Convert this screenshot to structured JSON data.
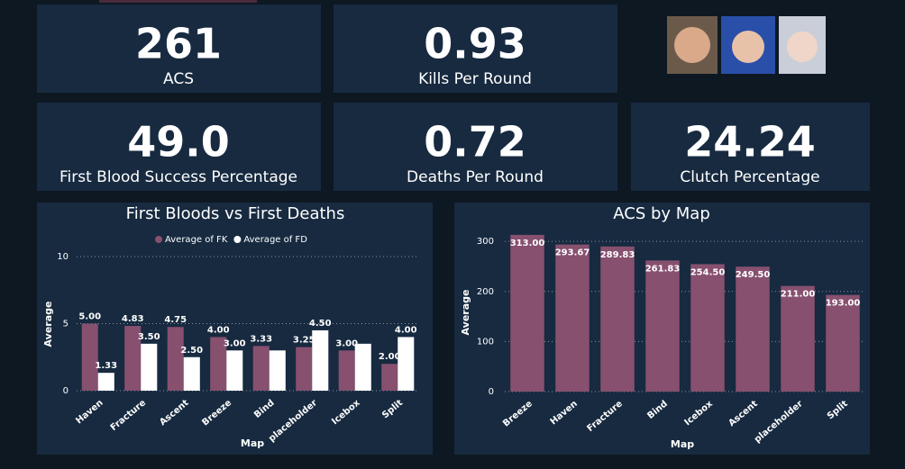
{
  "cards": [
    {
      "value": "261",
      "label": "ACS"
    },
    {
      "value": "0.93",
      "label": "Kills Per Round"
    },
    {
      "value": "49.0",
      "label": "First Blood Success Percentage"
    },
    {
      "value": "0.72",
      "label": "Deaths Per Round"
    },
    {
      "value": "24.24",
      "label": "Clutch Percentage"
    }
  ],
  "chart_data": [
    {
      "type": "bar",
      "title": "First Bloods vs First Deaths",
      "xlabel": "Map",
      "ylabel": "Average",
      "categories": [
        "Haven",
        "Fracture",
        "Ascent",
        "Breeze",
        "Bind",
        "placeholder",
        "Icebox",
        "Split"
      ],
      "series": [
        {
          "name": "Average of FK",
          "color": "#87506f",
          "values": [
            5,
            4.83,
            4.75,
            4,
            3.33,
            3.25,
            3,
            2
          ],
          "value_labels": [
            "5.00",
            "4.83",
            "4.75",
            "4.00",
            "3.33",
            "3.25",
            "3.00",
            "2.00"
          ]
        },
        {
          "name": "Average of FD",
          "color": "#ffffff",
          "values": [
            1.33,
            3.5,
            2.5,
            3,
            3,
            4.5,
            3.5,
            4
          ],
          "value_labels": [
            "1.33",
            "3.50",
            "2.50",
            "3.00",
            null,
            "4.50",
            null,
            "4.00"
          ]
        }
      ],
      "ylim": [
        0,
        10
      ],
      "yticks": [
        0,
        5,
        10
      ],
      "grid": true,
      "legend": "top"
    },
    {
      "type": "bar",
      "title": "ACS by Map",
      "xlabel": "Map",
      "ylabel": "Average",
      "categories": [
        "Breeze",
        "Haven",
        "Fracture",
        "Bind",
        "Icebox",
        "Ascent",
        "placeholder",
        "Split"
      ],
      "values": [
        313,
        293.67,
        289.83,
        261.83,
        254.5,
        249.5,
        211,
        193
      ],
      "value_labels": [
        "313.00",
        "293.67",
        "289.83",
        "261.83",
        "254.50",
        "249.50",
        "211.00",
        "193.00"
      ],
      "color": "#87506f",
      "ylim": [
        0,
        320
      ],
      "yticks": [
        0,
        100,
        200,
        300
      ],
      "grid": true
    }
  ]
}
